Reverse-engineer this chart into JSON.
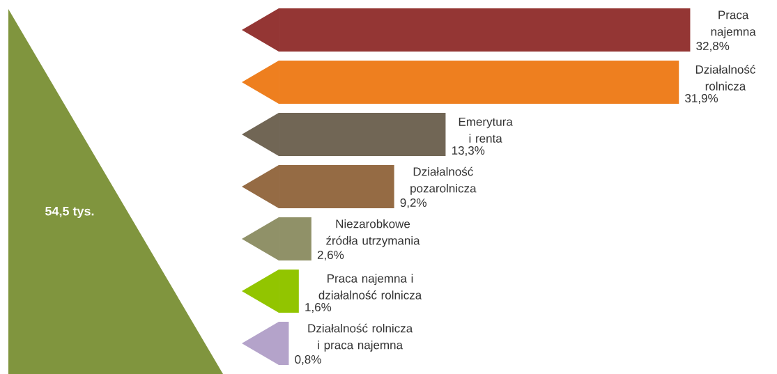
{
  "chart_data": {
    "type": "bar",
    "orientation": "horizontal",
    "categories": [
      "Praca najemna",
      "Działalność rolnicza",
      "Emerytura i renta",
      "Działalność pozarolnicza",
      "Niezarobkowe źródła utrzymania",
      "Praca najemna i działalność rolnicza",
      "Działalność rolnicza i praca najemna"
    ],
    "values": [
      32.8,
      31.9,
      13.3,
      9.2,
      2.6,
      1.6,
      0.8
    ],
    "value_labels": [
      "32,8%",
      "31,9%",
      "13,3%",
      "9,2%",
      "2,6%",
      "1,6%",
      "0,8%"
    ],
    "colors": [
      "#943634",
      "#ee7f1f",
      "#716655",
      "#956b44",
      "#909168",
      "#92c500",
      "#b4a3ca"
    ],
    "annotations": [
      "54,5 tys."
    ]
  }
}
